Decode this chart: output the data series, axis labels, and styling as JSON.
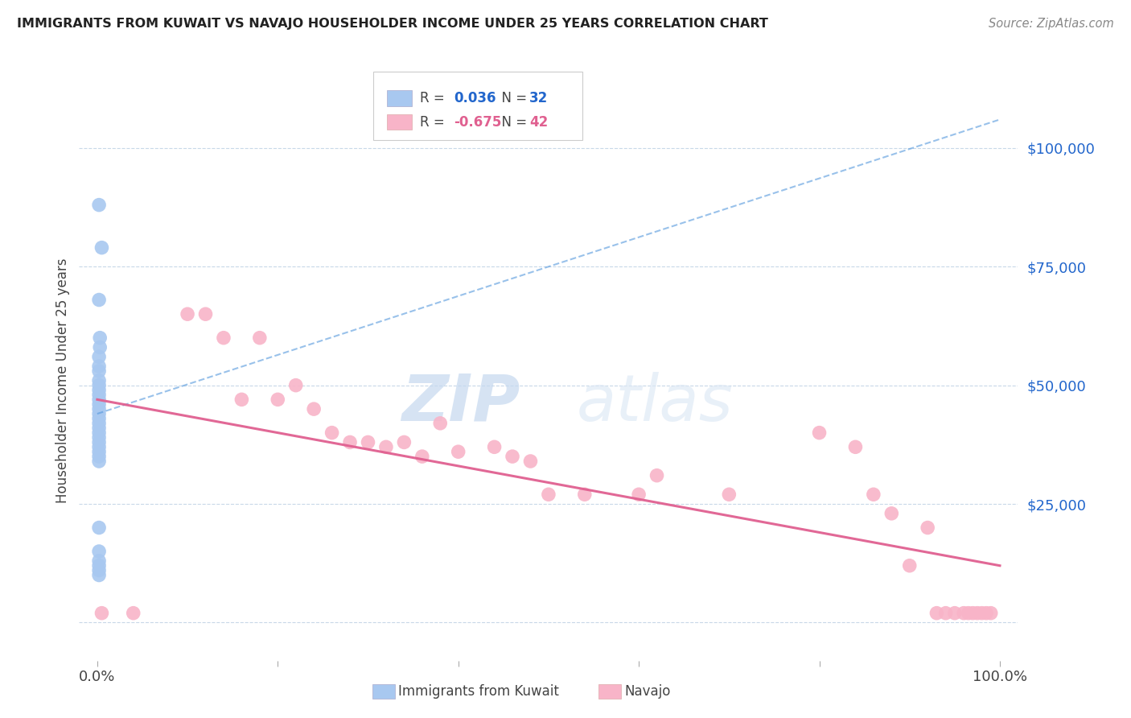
{
  "title": "IMMIGRANTS FROM KUWAIT VS NAVAJO HOUSEHOLDER INCOME UNDER 25 YEARS CORRELATION CHART",
  "source": "Source: ZipAtlas.com",
  "ylabel": "Householder Income Under 25 years",
  "yticks": [
    0,
    25000,
    50000,
    75000,
    100000
  ],
  "ytick_labels": [
    "",
    "$25,000",
    "$50,000",
    "$75,000",
    "$100,000"
  ],
  "legend_kuwait": {
    "R": "0.036",
    "N": "32"
  },
  "legend_navajo": {
    "R": "-0.675",
    "N": "42"
  },
  "kuwait_color": "#a8c8f0",
  "kuwait_line_color": "#5599dd",
  "navajo_color": "#f8b4c8",
  "navajo_line_color": "#e06090",
  "kuwait_scatter_x": [
    0.002,
    0.005,
    0.002,
    0.003,
    0.003,
    0.002,
    0.002,
    0.002,
    0.002,
    0.002,
    0.002,
    0.002,
    0.002,
    0.002,
    0.002,
    0.002,
    0.002,
    0.002,
    0.002,
    0.002,
    0.002,
    0.002,
    0.002,
    0.002,
    0.002,
    0.002,
    0.002,
    0.002,
    0.002,
    0.002,
    0.002,
    0.002
  ],
  "kuwait_scatter_y": [
    88000,
    79000,
    68000,
    60000,
    58000,
    56000,
    54000,
    53000,
    51000,
    50000,
    49000,
    48000,
    47000,
    46000,
    45000,
    44000,
    43000,
    42000,
    41000,
    40000,
    39000,
    38000,
    37000,
    36000,
    35000,
    34000,
    20000,
    15000,
    13000,
    12000,
    11000,
    10000
  ],
  "navajo_scatter_x": [
    0.005,
    0.04,
    0.1,
    0.12,
    0.14,
    0.16,
    0.18,
    0.2,
    0.22,
    0.24,
    0.26,
    0.28,
    0.3,
    0.32,
    0.34,
    0.36,
    0.38,
    0.4,
    0.44,
    0.46,
    0.48,
    0.5,
    0.54,
    0.6,
    0.62,
    0.7,
    0.8,
    0.84,
    0.86,
    0.88,
    0.9,
    0.92,
    0.93,
    0.94,
    0.95,
    0.96,
    0.965,
    0.97,
    0.975,
    0.98,
    0.985,
    0.99
  ],
  "navajo_scatter_y": [
    2000,
    2000,
    65000,
    65000,
    60000,
    47000,
    60000,
    47000,
    50000,
    45000,
    40000,
    38000,
    38000,
    37000,
    38000,
    35000,
    42000,
    36000,
    37000,
    35000,
    34000,
    27000,
    27000,
    27000,
    31000,
    27000,
    40000,
    37000,
    27000,
    23000,
    12000,
    20000,
    2000,
    2000,
    2000,
    2000,
    2000,
    2000,
    2000,
    2000,
    2000,
    2000
  ],
  "kuwait_trend_x": [
    0.0,
    1.0
  ],
  "kuwait_trend_y": [
    44000,
    106000
  ],
  "navajo_trend_x": [
    0.0,
    1.0
  ],
  "navajo_trend_y": [
    47000,
    12000
  ],
  "watermark_zip": "ZIP",
  "watermark_atlas": "atlas",
  "background_color": "#ffffff",
  "grid_color": "#c8d8e8",
  "xlim": [
    -0.02,
    1.02
  ],
  "ylim": [
    -8000,
    110000
  ]
}
